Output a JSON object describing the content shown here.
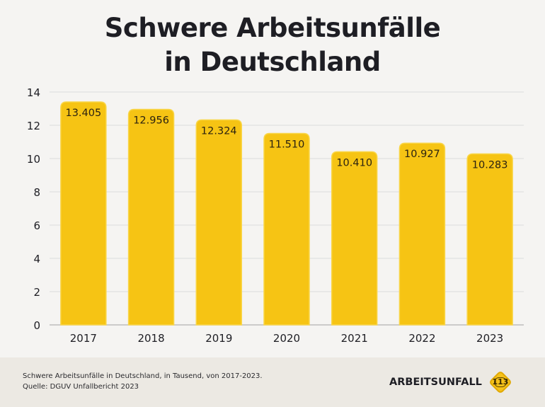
{
  "title": {
    "line1": "Schwere Arbeitsunfälle",
    "line2": "in Deutschland"
  },
  "chart_data": {
    "type": "bar",
    "title": "Schwere Arbeitsunfälle in Deutschland",
    "xlabel": "",
    "ylabel": "",
    "categories": [
      "2017",
      "2018",
      "2019",
      "2020",
      "2021",
      "2022",
      "2023"
    ],
    "values": [
      13.405,
      12.956,
      12.324,
      11.51,
      10.41,
      10.927,
      10.283
    ],
    "data_labels": [
      "13.405",
      "12.956",
      "12.324",
      "11.510",
      "10.410",
      "10.927",
      "10.283"
    ],
    "ylim": [
      0,
      14
    ],
    "yticks": [
      0,
      2,
      4,
      6,
      8,
      10,
      12,
      14
    ],
    "ytick_labels": [
      "0",
      "2",
      "4",
      "6",
      "8",
      "10",
      "12",
      "14"
    ],
    "grid": true,
    "legend": "none",
    "unit": "Tausend",
    "bar_color": "#f6c414"
  },
  "footer": {
    "note": "Schwere Arbeitsunfälle in Deutschland, in Tausend, von 2017-2023.",
    "source": "Quelle: DGUV Unfallbericht 2023"
  },
  "brand": {
    "name": "ARBEITSUNFALL",
    "badge": "113",
    "icon": "road-sign-diamond-icon"
  }
}
